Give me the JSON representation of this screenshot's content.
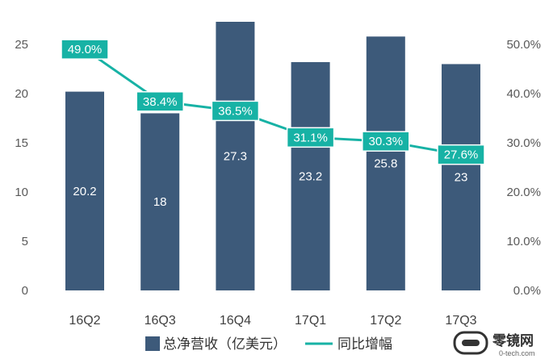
{
  "chart_data": {
    "type": "bar",
    "categories": [
      "16Q2",
      "16Q3",
      "16Q4",
      "17Q1",
      "17Q2",
      "17Q3"
    ],
    "series": [
      {
        "name": "总净营收（亿美元）",
        "type": "bar",
        "axis": "left",
        "color": "#3d5a7a",
        "values": [
          20.2,
          18,
          27.3,
          23.2,
          25.8,
          23
        ]
      },
      {
        "name": "同比增幅",
        "type": "line",
        "axis": "right",
        "color": "#17b2a5",
        "values": [
          49.0,
          38.4,
          36.5,
          31.1,
          30.3,
          27.6
        ],
        "labels": [
          "49.0%",
          "38.4%",
          "36.5%",
          "31.1%",
          "30.3%",
          "27.6%"
        ]
      }
    ],
    "bar_labels": [
      "20.2",
      "18",
      "27.3",
      "23.2",
      "25.8",
      "23"
    ],
    "y_left": {
      "ticks": [
        "0",
        "5",
        "10",
        "15",
        "20",
        "25"
      ],
      "range": [
        0,
        27.3
      ]
    },
    "y_right": {
      "ticks": [
        "0.0%",
        "10.0%",
        "20.0%",
        "30.0%",
        "40.0%",
        "50.0%"
      ],
      "range": [
        0,
        54.6
      ]
    },
    "legend_position": "bottom-center",
    "grid": false
  },
  "watermark": {
    "brand": "零镜网",
    "url": "0-tech.com"
  }
}
